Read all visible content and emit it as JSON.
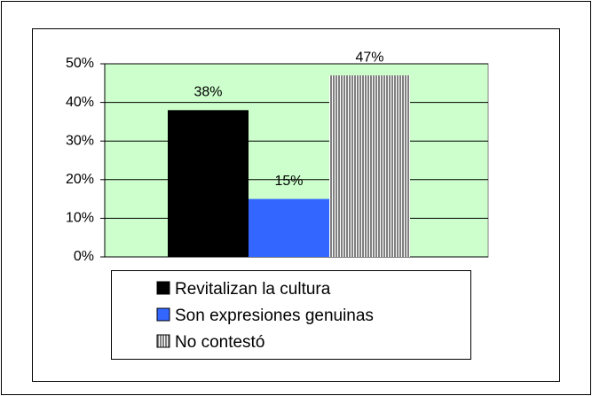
{
  "chart_data": {
    "type": "bar",
    "series": [
      {
        "name": "Revitalizan la cultura",
        "color": "#000000",
        "values": [
          38
        ],
        "value_labels": [
          "38%"
        ]
      },
      {
        "name": "Son expresiones genuinas",
        "color": "#3366ff",
        "values": [
          15
        ],
        "value_labels": [
          "15%"
        ]
      },
      {
        "name": "No contestó",
        "color": "#808080",
        "pattern": "vertical-stripes",
        "values": [
          47
        ],
        "value_labels": [
          "47%"
        ]
      }
    ],
    "ylim": [
      0,
      50
    ],
    "yticks": [
      {
        "value": 0,
        "label": "0%"
      },
      {
        "value": 10,
        "label": "10%"
      },
      {
        "value": 20,
        "label": "20%"
      },
      {
        "value": 30,
        "label": "30%"
      },
      {
        "value": 40,
        "label": "40%"
      },
      {
        "value": 50,
        "label": "50%"
      }
    ],
    "grid": true,
    "plot_background": "#ccffcc",
    "legend": "bottom"
  }
}
